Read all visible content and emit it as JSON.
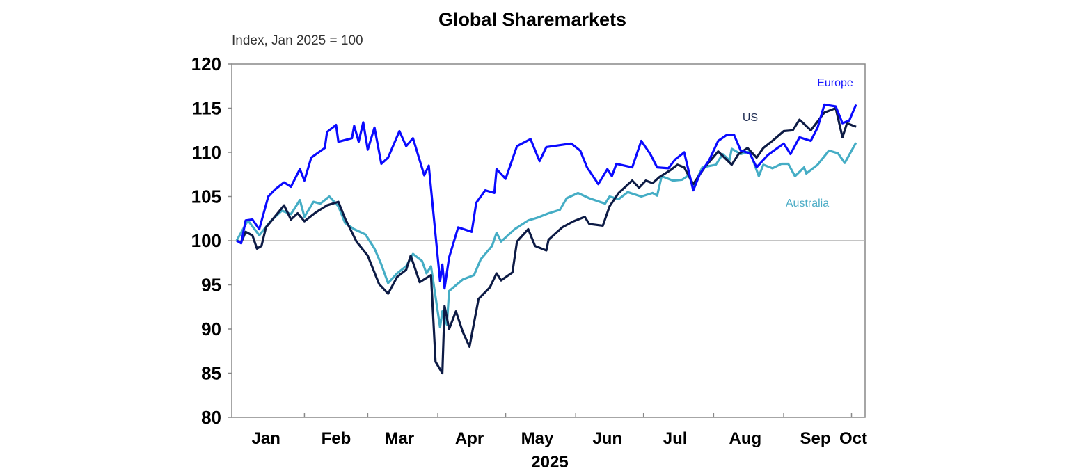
{
  "chart_data": {
    "type": "line",
    "title": "Global Sharemarkets",
    "subtitle": "Index, Jan 2025 = 100",
    "xlabel": "2025",
    "ylabel": "",
    "ylim": [
      80,
      120
    ],
    "yticks": [
      80,
      85,
      90,
      95,
      100,
      105,
      110,
      115,
      120
    ],
    "xlim": [
      "2025-01-01",
      "2025-10-04"
    ],
    "xtick_labels": [
      "Jan",
      "Feb",
      "Mar",
      "Apr",
      "May",
      "Jun",
      "Jul",
      "Aug",
      "Sep",
      "Oct"
    ],
    "reference_line": 100,
    "grid": false,
    "legend": "inline labels",
    "series": [
      {
        "name": "Europe",
        "color": "#0a0aff",
        "points": [
          [
            "2025-01-02",
            100
          ],
          [
            "2025-01-04",
            99.7
          ],
          [
            "2025-01-06",
            102.3
          ],
          [
            "2025-01-09",
            102.4
          ],
          [
            "2025-01-12",
            101.3
          ],
          [
            "2025-01-16",
            105
          ],
          [
            "2025-01-19",
            105.8
          ],
          [
            "2025-01-23",
            106.6
          ],
          [
            "2025-01-26",
            106.1
          ],
          [
            "2025-01-30",
            108.1
          ],
          [
            "2025-02-01",
            106.8
          ],
          [
            "2025-02-04",
            109.4
          ],
          [
            "2025-02-10",
            110.5
          ],
          [
            "2025-02-11",
            112.3
          ],
          [
            "2025-02-15",
            113.1
          ],
          [
            "2025-02-16",
            111.2
          ],
          [
            "2025-02-22",
            111.6
          ],
          [
            "2025-02-23",
            113
          ],
          [
            "2025-02-25",
            111.2
          ],
          [
            "2025-02-27",
            113.4
          ],
          [
            "2025-03-01",
            110.3
          ],
          [
            "2025-03-04",
            112.8
          ],
          [
            "2025-03-07",
            108.7
          ],
          [
            "2025-03-10",
            109.4
          ],
          [
            "2025-03-15",
            112.4
          ],
          [
            "2025-03-18",
            110.7
          ],
          [
            "2025-03-21",
            111.6
          ],
          [
            "2025-03-26",
            107.4
          ],
          [
            "2025-03-28",
            108.5
          ],
          [
            "2025-04-02",
            95.4
          ],
          [
            "2025-04-03",
            97.3
          ],
          [
            "2025-04-04",
            94.6
          ],
          [
            "2025-04-06",
            98.1
          ],
          [
            "2025-04-10",
            101.5
          ],
          [
            "2025-04-16",
            101
          ],
          [
            "2025-04-18",
            104.3
          ],
          [
            "2025-04-22",
            105.7
          ],
          [
            "2025-04-26",
            105.4
          ],
          [
            "2025-04-27",
            108.1
          ],
          [
            "2025-05-01",
            107
          ],
          [
            "2025-05-06",
            110.7
          ],
          [
            "2025-05-12",
            111.5
          ],
          [
            "2025-05-16",
            109
          ],
          [
            "2025-05-19",
            110.6
          ],
          [
            "2025-05-30",
            111
          ],
          [
            "2025-06-03",
            110.2
          ],
          [
            "2025-06-06",
            108.3
          ],
          [
            "2025-06-11",
            106.4
          ],
          [
            "2025-06-15",
            108.1
          ],
          [
            "2025-06-17",
            107.3
          ],
          [
            "2025-06-19",
            108.7
          ],
          [
            "2025-06-26",
            108.3
          ],
          [
            "2025-06-30",
            111.3
          ],
          [
            "2025-07-04",
            109.8
          ],
          [
            "2025-07-07",
            108.3
          ],
          [
            "2025-07-12",
            108.2
          ],
          [
            "2025-07-15",
            109.2
          ],
          [
            "2025-07-19",
            110
          ],
          [
            "2025-07-23",
            105.7
          ],
          [
            "2025-07-26",
            107.6
          ],
          [
            "2025-07-30",
            109.1
          ],
          [
            "2025-08-03",
            111.3
          ],
          [
            "2025-08-07",
            112
          ],
          [
            "2025-08-10",
            112
          ],
          [
            "2025-08-13",
            110.2
          ],
          [
            "2025-08-17",
            109.9
          ],
          [
            "2025-08-20",
            108.3
          ],
          [
            "2025-08-25",
            109.7
          ],
          [
            "2025-09-01",
            111
          ],
          [
            "2025-09-04",
            109.8
          ],
          [
            "2025-09-08",
            111.7
          ],
          [
            "2025-09-13",
            111.3
          ],
          [
            "2025-09-16",
            112.8
          ],
          [
            "2025-09-19",
            115.4
          ],
          [
            "2025-09-24",
            115.2
          ],
          [
            "2025-09-27",
            113.3
          ],
          [
            "2025-09-30",
            113.6
          ],
          [
            "2025-10-03",
            115.4
          ]
        ]
      },
      {
        "name": "US",
        "color": "#0d1b45",
        "points": [
          [
            "2025-01-02",
            100
          ],
          [
            "2025-01-04",
            99.8
          ],
          [
            "2025-01-06",
            101
          ],
          [
            "2025-01-09",
            100.6
          ],
          [
            "2025-01-11",
            99.1
          ],
          [
            "2025-01-13",
            99.4
          ],
          [
            "2025-01-15",
            101.5
          ],
          [
            "2025-01-23",
            104
          ],
          [
            "2025-01-26",
            102.4
          ],
          [
            "2025-01-29",
            103.1
          ],
          [
            "2025-02-01",
            102.2
          ],
          [
            "2025-02-06",
            103.2
          ],
          [
            "2025-02-11",
            104
          ],
          [
            "2025-02-16",
            104.4
          ],
          [
            "2025-02-19",
            102.5
          ],
          [
            "2025-02-24",
            99.9
          ],
          [
            "2025-03-01",
            98.3
          ],
          [
            "2025-03-06",
            95.1
          ],
          [
            "2025-03-10",
            94
          ],
          [
            "2025-03-14",
            95.9
          ],
          [
            "2025-03-18",
            96.7
          ],
          [
            "2025-03-20",
            98.3
          ],
          [
            "2025-03-24",
            95.3
          ],
          [
            "2025-03-29",
            96.1
          ],
          [
            "2025-03-31",
            86.3
          ],
          [
            "2025-04-03",
            85
          ],
          [
            "2025-04-04",
            92.6
          ],
          [
            "2025-04-06",
            90
          ],
          [
            "2025-04-09",
            92
          ],
          [
            "2025-04-12",
            89.7
          ],
          [
            "2025-04-15",
            88
          ],
          [
            "2025-04-19",
            93.4
          ],
          [
            "2025-04-24",
            94.7
          ],
          [
            "2025-04-27",
            96.3
          ],
          [
            "2025-04-29",
            95.5
          ],
          [
            "2025-05-04",
            96.4
          ],
          [
            "2025-05-06",
            99.9
          ],
          [
            "2025-05-11",
            101.3
          ],
          [
            "2025-05-14",
            99.4
          ],
          [
            "2025-05-19",
            98.9
          ],
          [
            "2025-05-20",
            100.1
          ],
          [
            "2025-05-26",
            101.5
          ],
          [
            "2025-05-31",
            102.2
          ],
          [
            "2025-06-05",
            102.7
          ],
          [
            "2025-06-07",
            101.9
          ],
          [
            "2025-06-13",
            101.7
          ],
          [
            "2025-06-16",
            103.9
          ],
          [
            "2025-06-20",
            105.4
          ],
          [
            "2025-06-26",
            106.8
          ],
          [
            "2025-06-29",
            106
          ],
          [
            "2025-07-02",
            106.8
          ],
          [
            "2025-07-05",
            106.5
          ],
          [
            "2025-07-08",
            107.2
          ],
          [
            "2025-07-13",
            108
          ],
          [
            "2025-07-16",
            108.6
          ],
          [
            "2025-07-19",
            108.3
          ],
          [
            "2025-07-23",
            106.4
          ],
          [
            "2025-07-28",
            108.3
          ],
          [
            "2025-08-03",
            110.1
          ],
          [
            "2025-08-09",
            108.6
          ],
          [
            "2025-08-12",
            109.8
          ],
          [
            "2025-08-16",
            110.5
          ],
          [
            "2025-08-20",
            109.4
          ],
          [
            "2025-08-23",
            110.5
          ],
          [
            "2025-08-27",
            111.3
          ],
          [
            "2025-09-01",
            112.4
          ],
          [
            "2025-09-05",
            112.5
          ],
          [
            "2025-09-08",
            113.7
          ],
          [
            "2025-09-13",
            112.5
          ],
          [
            "2025-09-19",
            114.5
          ],
          [
            "2025-09-24",
            115
          ],
          [
            "2025-09-27",
            111.7
          ],
          [
            "2025-09-29",
            113.3
          ],
          [
            "2025-10-03",
            112.9
          ]
        ]
      },
      {
        "name": "Australia",
        "color": "#45adc5",
        "points": [
          [
            "2025-01-02",
            100
          ],
          [
            "2025-01-07",
            102.3
          ],
          [
            "2025-01-12",
            100.6
          ],
          [
            "2025-01-17",
            102.2
          ],
          [
            "2025-01-22",
            103.4
          ],
          [
            "2025-01-26",
            103
          ],
          [
            "2025-01-30",
            104.6
          ],
          [
            "2025-02-01",
            102.7
          ],
          [
            "2025-02-05",
            104.4
          ],
          [
            "2025-02-08",
            104.2
          ],
          [
            "2025-02-12",
            105
          ],
          [
            "2025-02-16",
            103.9
          ],
          [
            "2025-02-19",
            102
          ],
          [
            "2025-02-23",
            101.3
          ],
          [
            "2025-02-28",
            100.7
          ],
          [
            "2025-03-04",
            99.1
          ],
          [
            "2025-03-07",
            97.3
          ],
          [
            "2025-03-10",
            95.2
          ],
          [
            "2025-03-14",
            96.3
          ],
          [
            "2025-03-18",
            97.1
          ],
          [
            "2025-03-21",
            98.5
          ],
          [
            "2025-03-25",
            97.7
          ],
          [
            "2025-03-27",
            96.3
          ],
          [
            "2025-03-29",
            97.1
          ],
          [
            "2025-04-02",
            90.2
          ],
          [
            "2025-04-03",
            92
          ],
          [
            "2025-04-05",
            90.5
          ],
          [
            "2025-04-06",
            94.3
          ],
          [
            "2025-04-12",
            95.6
          ],
          [
            "2025-04-17",
            96.1
          ],
          [
            "2025-04-20",
            97.9
          ],
          [
            "2025-04-25",
            99.4
          ],
          [
            "2025-04-27",
            100.9
          ],
          [
            "2025-04-29",
            99.9
          ],
          [
            "2025-05-05",
            101.3
          ],
          [
            "2025-05-11",
            102.3
          ],
          [
            "2025-05-15",
            102.6
          ],
          [
            "2025-05-20",
            103.1
          ],
          [
            "2025-05-25",
            103.5
          ],
          [
            "2025-05-28",
            104.8
          ],
          [
            "2025-06-02",
            105.4
          ],
          [
            "2025-06-07",
            104.8
          ],
          [
            "2025-06-14",
            104.2
          ],
          [
            "2025-06-16",
            105
          ],
          [
            "2025-06-20",
            104.7
          ],
          [
            "2025-06-24",
            105.5
          ],
          [
            "2025-06-30",
            105
          ],
          [
            "2025-07-05",
            105.4
          ],
          [
            "2025-07-07",
            105.1
          ],
          [
            "2025-07-09",
            107.3
          ],
          [
            "2025-07-14",
            106.8
          ],
          [
            "2025-07-18",
            106.9
          ],
          [
            "2025-07-21",
            107.4
          ],
          [
            "2025-07-23",
            106.1
          ],
          [
            "2025-07-27",
            108.3
          ],
          [
            "2025-08-02",
            108.6
          ],
          [
            "2025-08-05",
            109.8
          ],
          [
            "2025-08-08",
            109.1
          ],
          [
            "2025-08-09",
            110.4
          ],
          [
            "2025-08-13",
            109.8
          ],
          [
            "2025-08-17",
            110.1
          ],
          [
            "2025-08-21",
            107.3
          ],
          [
            "2025-08-23",
            108.6
          ],
          [
            "2025-08-27",
            108.2
          ],
          [
            "2025-08-31",
            108.7
          ],
          [
            "2025-09-03",
            108.7
          ],
          [
            "2025-09-06",
            107.3
          ],
          [
            "2025-09-10",
            108.3
          ],
          [
            "2025-09-11",
            107.6
          ],
          [
            "2025-09-16",
            108.6
          ],
          [
            "2025-09-21",
            110.2
          ],
          [
            "2025-09-25",
            109.9
          ],
          [
            "2025-09-28",
            108.8
          ],
          [
            "2025-10-03",
            111.1
          ]
        ]
      }
    ]
  }
}
